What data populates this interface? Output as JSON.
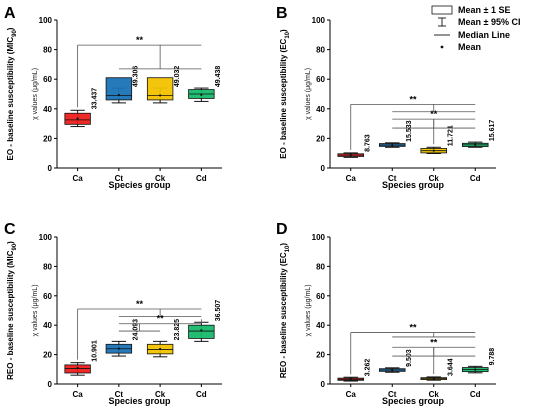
{
  "figure": {
    "categories": [
      "Ca",
      "Ct",
      "Ck",
      "Cd"
    ],
    "colors": [
      "#ee1c1c",
      "#1a73b5",
      "#f2c300",
      "#16b86a"
    ],
    "legend": {
      "entries": [
        "Mean ± 1 SE",
        "Mean ± 95% CI",
        "Median Line",
        "Mean"
      ]
    }
  },
  "chart_data": [
    {
      "panel_letter": "A",
      "type": "box",
      "ylabel_main": "EO - baseline susceptibility (MIC",
      "ylabel_sub": "90",
      "ylabel_end": ")",
      "inner_ylabel": "χ values (μg/mL)",
      "xlabel": "Species group",
      "ylim": [
        0,
        100
      ],
      "yticks": [
        0,
        20,
        40,
        60,
        80,
        100
      ],
      "categories": [
        "Ca",
        "Ct",
        "Ck",
        "Cd"
      ],
      "boxes": [
        {
          "mean": 33.437,
          "median": 32.5,
          "se_low": 29.5,
          "se_high": 37.0,
          "ci_low": 28.0,
          "ci_high": 39.0,
          "label": "33.437"
        },
        {
          "mean": 49.306,
          "median": 49.0,
          "se_low": 46.0,
          "se_high": 61.0,
          "ci_low": 44.0,
          "ci_high": 54.0,
          "label": "49.306"
        },
        {
          "mean": 49.032,
          "median": 49.0,
          "se_low": 46.0,
          "se_high": 61.0,
          "ci_low": 44.0,
          "ci_high": 54.0,
          "label": "49.032"
        },
        {
          "mean": 49.438,
          "median": 50.0,
          "se_low": 47.0,
          "se_high": 53.0,
          "ci_low": 45.0,
          "ci_high": 54.0,
          "label": "49.438"
        }
      ],
      "significance": [
        {
          "label": "**",
          "from": 0,
          "to": [
            1,
            2,
            3
          ],
          "level": 83,
          "sublevel": 67
        }
      ]
    },
    {
      "panel_letter": "B",
      "type": "box",
      "ylabel_main": "EO - baseline susceptibility (EC",
      "ylabel_sub": "10",
      "ylabel_end": ")",
      "inner_ylabel": "χ values (μg/mL)",
      "xlabel": "Species group",
      "ylim": [
        0,
        100
      ],
      "yticks": [
        0,
        20,
        40,
        60,
        80,
        100
      ],
      "categories": [
        "Ca",
        "Ct",
        "Ck",
        "Cd"
      ],
      "boxes": [
        {
          "mean": 8.763,
          "median": 8.7,
          "se_low": 7.8,
          "se_high": 9.6,
          "ci_low": 7.2,
          "ci_high": 10.2,
          "label": "8.763"
        },
        {
          "mean": 15.533,
          "median": 15.5,
          "se_low": 14.6,
          "se_high": 16.5,
          "ci_low": 14.0,
          "ci_high": 17.0,
          "label": "15.533"
        },
        {
          "mean": 11.721,
          "median": 11.7,
          "se_low": 10.2,
          "se_high": 13.2,
          "ci_low": 9.8,
          "ci_high": 14.0,
          "label": "11.721"
        },
        {
          "mean": 15.617,
          "median": 15.6,
          "se_low": 14.5,
          "se_high": 16.7,
          "ci_low": 14.0,
          "ci_high": 17.5,
          "label": "15.617"
        }
      ],
      "significance": [
        {
          "label": "**",
          "from": 0,
          "to": [
            1,
            2,
            3
          ],
          "level": 43,
          "sublevel": 38
        },
        {
          "label": "**",
          "from": 2,
          "to": [
            1,
            3
          ],
          "level": 33,
          "sublevel": 27
        }
      ]
    },
    {
      "panel_letter": "C",
      "type": "box",
      "ylabel_main": "REO - baseline susceptibility (MIC",
      "ylabel_sub": "90",
      "ylabel_end": ")",
      "inner_ylabel": "χ values (μg/mL)",
      "xlabel": "Species group",
      "ylim": [
        0,
        100
      ],
      "yticks": [
        0,
        20,
        40,
        60,
        80,
        100
      ],
      "categories": [
        "Ca",
        "Ct",
        "Ck",
        "Cd"
      ],
      "boxes": [
        {
          "mean": 10.901,
          "median": 10.5,
          "se_low": 7.5,
          "se_high": 13.0,
          "ci_low": 6.0,
          "ci_high": 14.5,
          "label": "10.901"
        },
        {
          "mean": 24.093,
          "median": 24.0,
          "se_low": 21.0,
          "se_high": 27.0,
          "ci_low": 19.0,
          "ci_high": 29.0,
          "label": "24.093"
        },
        {
          "mean": 23.825,
          "median": 23.5,
          "se_low": 20.5,
          "se_high": 27.0,
          "ci_low": 18.5,
          "ci_high": 29.0,
          "label": "23.825"
        },
        {
          "mean": 36.507,
          "median": 36.0,
          "se_low": 31.0,
          "se_high": 40.0,
          "ci_low": 29.0,
          "ci_high": 42.0,
          "label": "36.507"
        }
      ],
      "significance": [
        {
          "label": "**",
          "from": 0,
          "to": [
            1,
            2,
            3
          ],
          "level": 51,
          "sublevel": 46
        },
        {
          "label": "**",
          "from": 3,
          "to": [
            1,
            2
          ],
          "level": 41,
          "sublevel": 36
        }
      ]
    },
    {
      "panel_letter": "D",
      "type": "box",
      "ylabel_main": "REO - baseline susceptibility (EC",
      "ylabel_sub": "10",
      "ylabel_end": ")",
      "inner_ylabel": "χ values (μg/mL)",
      "xlabel": "Species group",
      "ylim": [
        0,
        100
      ],
      "yticks": [
        0,
        20,
        40,
        60,
        80,
        100
      ],
      "categories": [
        "Ca",
        "Ct",
        "Ck",
        "Cd"
      ],
      "boxes": [
        {
          "mean": 3.262,
          "median": 3.2,
          "se_low": 2.5,
          "se_high": 4.0,
          "ci_low": 2.0,
          "ci_high": 4.6,
          "label": "3.262"
        },
        {
          "mean": 9.503,
          "median": 9.5,
          "se_low": 8.6,
          "se_high": 10.4,
          "ci_low": 8.0,
          "ci_high": 11.0,
          "label": "9.503"
        },
        {
          "mean": 3.644,
          "median": 3.6,
          "se_low": 3.0,
          "se_high": 4.3,
          "ci_low": 2.6,
          "ci_high": 4.8,
          "label": "3.644"
        },
        {
          "mean": 9.788,
          "median": 9.8,
          "se_low": 8.4,
          "se_high": 11.2,
          "ci_low": 7.6,
          "ci_high": 12.0,
          "label": "9.788"
        }
      ],
      "significance": [
        {
          "label": "**",
          "from": 0,
          "to": [
            1,
            2,
            3
          ],
          "level": 35,
          "sublevel": 32
        },
        {
          "label": "**",
          "from": 2,
          "to": [
            1,
            3
          ],
          "level": 25,
          "sublevel": 19
        }
      ]
    }
  ]
}
